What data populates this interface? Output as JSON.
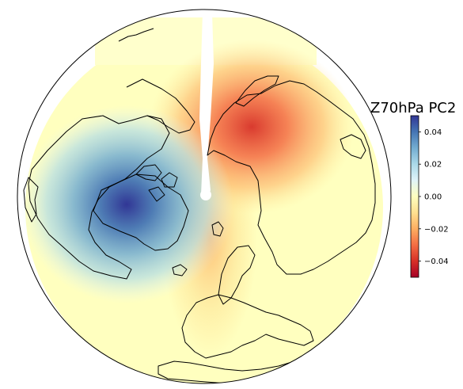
{
  "title": "Z70hPa PC2",
  "projection": "north-polar-stereographic",
  "field": {
    "colormap": "RdYlBu",
    "vmin": -0.05,
    "vmax": 0.05,
    "negative_center_region": "Siberia / East Asia",
    "positive_center_region": "Canadian Arctic Archipelago / Greenland",
    "missing_data": "white sector along the pole and the 180° meridian"
  },
  "colorbar": {
    "ticks": [
      "0.04",
      "0.02",
      "0.00",
      "−0.02",
      "−0.04"
    ],
    "tick_values": [
      0.04,
      0.02,
      0.0,
      -0.02,
      -0.04
    ],
    "colors": [
      "#313695",
      "#4575b4",
      "#74add1",
      "#abd9e9",
      "#e0f3f8",
      "#ffffbf",
      "#fee090",
      "#fdae61",
      "#f46d43",
      "#d73027",
      "#a50026"
    ]
  }
}
